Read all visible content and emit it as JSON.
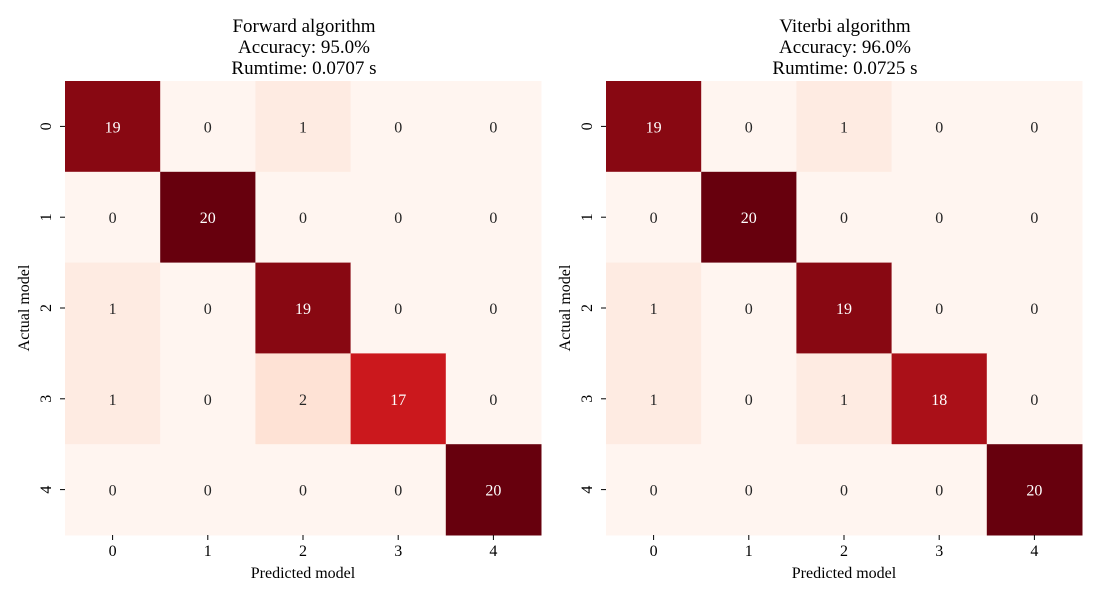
{
  "colors": {
    "cmap_low": "#fff5f0",
    "cmap_mid1": "#fcbba1",
    "cmap_mid2": "#fb6a4a",
    "cmap_mid3": "#cb181d",
    "cmap_high": "#67000d",
    "text_dark": "#262626",
    "text_light": "#ffffff"
  },
  "chart_data": [
    {
      "type": "heatmap",
      "title_lines": [
        "Forward algorithm",
        "Accuracy: 95.0%",
        "Rumtime: 0.0707 s"
      ],
      "xlabel": "Predicted model",
      "ylabel": "Actual model",
      "x_categories": [
        "0",
        "1",
        "2",
        "3",
        "4"
      ],
      "y_categories": [
        "0",
        "1",
        "2",
        "3",
        "4"
      ],
      "vmin": 0,
      "vmax": 20,
      "values": [
        [
          19,
          0,
          1,
          0,
          0
        ],
        [
          0,
          20,
          0,
          0,
          0
        ],
        [
          1,
          0,
          19,
          0,
          0
        ],
        [
          1,
          0,
          2,
          17,
          0
        ],
        [
          0,
          0,
          0,
          0,
          20
        ]
      ]
    },
    {
      "type": "heatmap",
      "title_lines": [
        "Viterbi algorithm",
        "Accuracy: 96.0%",
        "Rumtime: 0.0725 s"
      ],
      "xlabel": "Predicted model",
      "ylabel": "Actual model",
      "x_categories": [
        "0",
        "1",
        "2",
        "3",
        "4"
      ],
      "y_categories": [
        "0",
        "1",
        "2",
        "3",
        "4"
      ],
      "vmin": 0,
      "vmax": 20,
      "values": [
        [
          19,
          0,
          1,
          0,
          0
        ],
        [
          0,
          20,
          0,
          0,
          0
        ],
        [
          1,
          0,
          19,
          0,
          0
        ],
        [
          1,
          0,
          1,
          18,
          0
        ],
        [
          0,
          0,
          0,
          0,
          20
        ]
      ]
    }
  ]
}
